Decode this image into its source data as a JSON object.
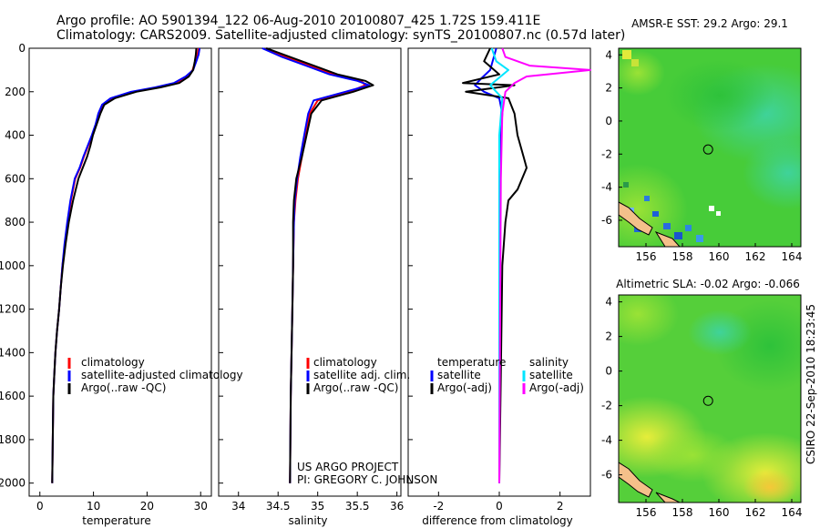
{
  "header": {
    "title_line1": "Argo profile: AO 5901394_122 06-Aug-2010 20100807_425 1.72S 159.411E",
    "title_line2": "Climatology: CARS2009. Satellite-adjusted climatology: synTS_20100807.nc (0.57d later)"
  },
  "credits": {
    "project": "US ARGO PROJECT",
    "pi": "PI: GREGORY C. JOHNSON",
    "stamp": "CSIRO  22-Sep-2010 18:23:45"
  },
  "colors": {
    "climatology": "#ff0000",
    "satellite": "#0000ff",
    "argo": "#000000",
    "salinity_satellite": "#00e5ff",
    "salinity_argo": "#ff00ff",
    "land": "#f4c08a"
  },
  "chart_data": [
    {
      "type": "line",
      "id": "temperature",
      "xlabel": "temperature",
      "ylabel": "",
      "xlim": [
        -2,
        32
      ],
      "ylim": [
        2060,
        0
      ],
      "xticks": [
        0,
        10,
        20,
        30
      ],
      "yticks": [
        0,
        200,
        400,
        600,
        800,
        1000,
        1200,
        1400,
        1600,
        1800,
        2000
      ],
      "legend": [
        "climatology",
        "satellite-adjusted climatology",
        "Argo(..raw -QC)"
      ],
      "legend_position": "bottom-right",
      "series": [
        {
          "name": "climatology",
          "color": "#ff0000",
          "x": [
            29.6,
            29.4,
            29.0,
            28.5,
            27.5,
            25.5,
            22.0,
            17.5,
            13.5,
            11.8,
            11.0,
            10.5,
            9.8,
            9.0,
            8.2,
            7.5,
            6.6,
            5.8,
            5.2,
            4.7,
            4.2,
            3.9,
            3.6,
            3.2,
            2.9,
            2.7,
            2.5,
            2.4,
            2.3
          ],
          "y": [
            0,
            30,
            60,
            100,
            130,
            160,
            180,
            200,
            230,
            260,
            300,
            350,
            400,
            450,
            500,
            550,
            600,
            700,
            800,
            900,
            1000,
            1100,
            1200,
            1300,
            1400,
            1500,
            1600,
            1800,
            2000
          ]
        },
        {
          "name": "satellite-adjusted climatology",
          "color": "#0000ff",
          "x": [
            29.8,
            29.6,
            29.2,
            28.6,
            27.2,
            25.0,
            21.5,
            17.0,
            13.2,
            11.6,
            10.9,
            10.4,
            9.7,
            8.9,
            8.1,
            7.4,
            6.5,
            5.7,
            5.1,
            4.6,
            4.2,
            3.9,
            3.6,
            3.2,
            2.9,
            2.7,
            2.5,
            2.4,
            2.3
          ],
          "y": [
            0,
            30,
            60,
            100,
            130,
            160,
            180,
            200,
            230,
            260,
            300,
            350,
            400,
            450,
            500,
            550,
            600,
            700,
            800,
            900,
            1000,
            1100,
            1200,
            1300,
            1400,
            1500,
            1600,
            1800,
            2000
          ]
        },
        {
          "name": "Argo(..raw -QC)",
          "color": "#000000",
          "x": [
            29.2,
            29.1,
            28.9,
            28.6,
            27.8,
            26.0,
            22.5,
            18.0,
            14.0,
            12.0,
            11.3,
            10.6,
            9.9,
            9.4,
            8.8,
            8.0,
            7.2,
            6.2,
            5.4,
            4.8,
            4.3,
            3.9,
            3.6,
            3.2,
            2.9,
            2.7,
            2.5,
            2.4,
            2.3
          ],
          "y": [
            0,
            30,
            60,
            100,
            130,
            160,
            180,
            200,
            230,
            260,
            300,
            350,
            400,
            450,
            500,
            550,
            600,
            700,
            800,
            900,
            1000,
            1100,
            1200,
            1300,
            1400,
            1500,
            1600,
            1800,
            2000
          ]
        }
      ]
    },
    {
      "type": "line",
      "id": "salinity",
      "xlabel": "salinity",
      "ylabel": "",
      "xlim": [
        33.75,
        36.05
      ],
      "ylim": [
        2060,
        0
      ],
      "xticks": [
        34,
        34.5,
        35,
        35.5,
        36
      ],
      "legend": [
        "climatology",
        "satellite adj. clim.",
        "Argo(..raw -QC)"
      ],
      "legend_position": "bottom-right",
      "series": [
        {
          "name": "climatology",
          "color": "#ff0000",
          "x": [
            34.35,
            34.6,
            34.9,
            35.2,
            35.55,
            35.6,
            35.4,
            35.0,
            34.9,
            34.85,
            34.8,
            34.75,
            34.72,
            34.7,
            34.69,
            34.68,
            34.67,
            34.66,
            34.65
          ],
          "y": [
            0,
            40,
            80,
            120,
            150,
            170,
            200,
            240,
            300,
            400,
            500,
            600,
            700,
            800,
            1000,
            1200,
            1400,
            1600,
            2000
          ]
        },
        {
          "name": "satellite adj. clim.",
          "color": "#0000ff",
          "x": [
            34.3,
            34.55,
            34.85,
            35.15,
            35.5,
            35.65,
            35.35,
            34.95,
            34.88,
            34.83,
            34.78,
            34.74,
            34.71,
            34.7,
            34.69,
            34.68,
            34.67,
            34.66,
            34.65
          ],
          "y": [
            0,
            40,
            80,
            120,
            150,
            170,
            200,
            240,
            300,
            400,
            500,
            600,
            700,
            800,
            1000,
            1200,
            1400,
            1600,
            2000
          ]
        },
        {
          "name": "Argo(..raw -QC)",
          "color": "#000000",
          "x": [
            34.35,
            34.65,
            34.95,
            35.25,
            35.6,
            35.7,
            35.45,
            35.05,
            34.92,
            34.86,
            34.8,
            34.73,
            34.7,
            34.69,
            34.69,
            34.68,
            34.67,
            34.66,
            34.65
          ],
          "y": [
            0,
            40,
            80,
            120,
            150,
            170,
            200,
            240,
            300,
            400,
            500,
            600,
            700,
            800,
            1000,
            1200,
            1400,
            1600,
            2000
          ]
        }
      ]
    },
    {
      "type": "line",
      "id": "difference",
      "xlabel": "difference from climatology",
      "ylabel": "",
      "xlim": [
        -3,
        3
      ],
      "ylim": [
        2060,
        0
      ],
      "xticks": [
        -2,
        0,
        2
      ],
      "legend_left_title": "temperature",
      "legend_right_title": "salinity",
      "legend": [
        "satellite",
        "Argo(-adj)",
        "satellite",
        "Argo(-adj)"
      ],
      "legend_position": "bottom",
      "series": [
        {
          "name": "satellite",
          "color": "#0000ff",
          "x": [
            -0.1,
            -0.3,
            -0.6,
            -0.8,
            -0.5,
            0.0,
            0.1,
            0.05,
            0.0,
            0.0,
            0.0,
            0.0
          ],
          "y": [
            0,
            100,
            140,
            170,
            200,
            230,
            300,
            400,
            600,
            1000,
            1500,
            2000
          ]
        },
        {
          "name": "Argo(-adj)",
          "color": "#000000",
          "x": [
            -0.3,
            -0.5,
            0.0,
            -1.2,
            0.5,
            -1.1,
            0.3,
            0.5,
            0.6,
            0.8,
            0.9,
            0.6,
            0.3,
            0.2,
            0.1,
            0.05,
            0.0
          ],
          "y": [
            0,
            60,
            120,
            160,
            170,
            200,
            230,
            300,
            400,
            500,
            550,
            650,
            700,
            800,
            1000,
            1500,
            2000
          ]
        },
        {
          "name": "satellite",
          "color": "#00e5ff",
          "x": [
            -0.25,
            -0.1,
            0.3,
            -0.3,
            0.1,
            0.0,
            0.0,
            0.0,
            0.0
          ],
          "y": [
            0,
            60,
            100,
            170,
            230,
            400,
            700,
            1200,
            2000
          ]
        },
        {
          "name": "Argo(-adj)",
          "color": "#ff00ff",
          "x": [
            0.1,
            0.2,
            1.0,
            3.0,
            0.9,
            0.5,
            0.2,
            0.1,
            0.05,
            0.0
          ],
          "y": [
            0,
            40,
            80,
            100,
            130,
            160,
            200,
            300,
            600,
            2000
          ]
        }
      ]
    },
    {
      "type": "heatmap",
      "id": "sst_map",
      "title": "AMSR-E SST: 29.2 Argo: 29.1",
      "xlim": [
        154.5,
        164.5
      ],
      "ylim": [
        -7.6,
        4.4
      ],
      "xticks": [
        156,
        158,
        160,
        162,
        164
      ],
      "yticks": [
        4,
        2,
        0,
        -2,
        -4,
        -6
      ],
      "marker": {
        "lon": 159.411,
        "lat": -1.72
      }
    },
    {
      "type": "heatmap",
      "id": "sla_map",
      "title": "Altimetric SLA: -0.02 Argo: -0.066",
      "xlim": [
        154.5,
        164.5
      ],
      "ylim": [
        -7.6,
        4.4
      ],
      "xticks": [
        156,
        158,
        160,
        162,
        164
      ],
      "yticks": [
        4,
        2,
        0,
        -2,
        -4,
        -6
      ],
      "marker": {
        "lon": 159.411,
        "lat": -1.72
      }
    }
  ]
}
